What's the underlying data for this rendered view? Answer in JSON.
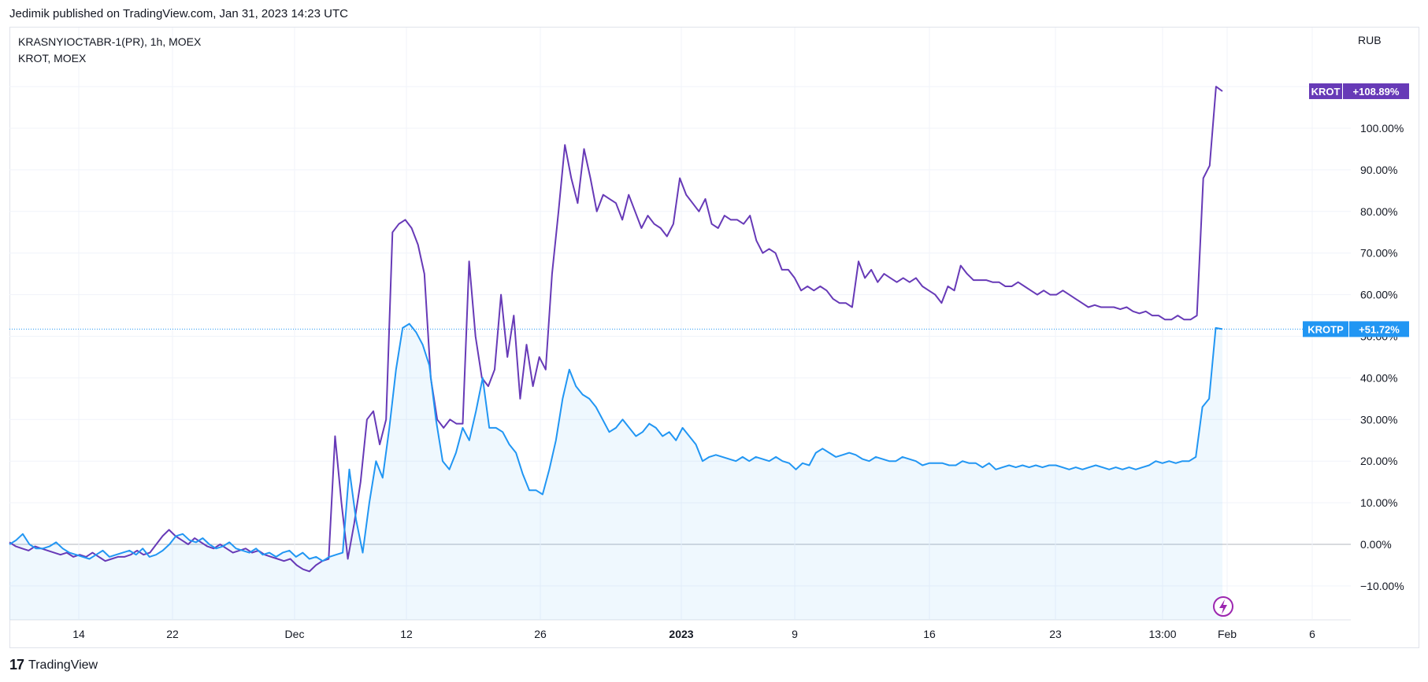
{
  "header": {
    "published": "Jedimik published on TradingView.com, Jan 31, 2023 14:23 UTC"
  },
  "legend": {
    "line1": "KRASNYIOCTABR-1(PR), 1h, MOEX",
    "line2": "KROT, MOEX"
  },
  "currency": "RUB",
  "footer": {
    "brand": "TradingView",
    "logo_text": "17"
  },
  "colors": {
    "krot": "#673ab7",
    "krotp": "#2196f3",
    "zero": "#b2b5be",
    "grid": "#f0f3fa"
  },
  "chart_data": {
    "type": "line",
    "title": "",
    "ylabel": "",
    "y_unit": "%",
    "ylim": [
      -16,
      120
    ],
    "y_ticks": [
      "100.00%",
      "90.00%",
      "80.00%",
      "70.00%",
      "60.00%",
      "50.00%",
      "40.00%",
      "30.00%",
      "20.00%",
      "10.00%",
      "0.00%",
      "−10.00%"
    ],
    "x_tick_labels": [
      "14",
      "22",
      "Dec",
      "12",
      "26",
      "2023",
      "9",
      "16",
      "23",
      "13:00",
      "Feb",
      "6"
    ],
    "series": [
      {
        "name": "KROT",
        "color": "#673ab7",
        "last_label": "+108.89%",
        "values": [
          0.5,
          -0.5,
          -1,
          -1.5,
          -0.5,
          -1,
          -1.5,
          -2,
          -2.5,
          -2,
          -3,
          -2.5,
          -3,
          -2,
          -3,
          -4,
          -3.5,
          -3,
          -3,
          -2.5,
          -1.5,
          -2.5,
          -2,
          0,
          2,
          3.5,
          2,
          1,
          0,
          1.5,
          0.5,
          -0.5,
          -1,
          0,
          -1,
          -2,
          -1.5,
          -1,
          -2,
          -1.5,
          -2.5,
          -3,
          -3.5,
          -4,
          -3.5,
          -5,
          -6,
          -6.5,
          -5,
          -4,
          -3.5,
          26,
          10,
          -3.5,
          5,
          15,
          30,
          32,
          24,
          30,
          75,
          77,
          78,
          76,
          72,
          65,
          40,
          30,
          28,
          30,
          29,
          29,
          68,
          50,
          40,
          38,
          42,
          60,
          45,
          55,
          35,
          48,
          38,
          45,
          42,
          65,
          80,
          96,
          88,
          82,
          95,
          88,
          80,
          84,
          83,
          82,
          78,
          84,
          80,
          76,
          79,
          77,
          76,
          74,
          77,
          88,
          84,
          82,
          80,
          83,
          77,
          76,
          79,
          78,
          78,
          77,
          79,
          73,
          70,
          71,
          70,
          66,
          66,
          64,
          61,
          62,
          61,
          62,
          61,
          59,
          58,
          58,
          57,
          68,
          64,
          66,
          63,
          65,
          64,
          63,
          64,
          63,
          64,
          62,
          61,
          60,
          58,
          62,
          61,
          67,
          65,
          63.5,
          63.5,
          63.5,
          63,
          63,
          62,
          62,
          63,
          62,
          61,
          60,
          61,
          60,
          60,
          61,
          60,
          59,
          58,
          57,
          57.5,
          57,
          57,
          57,
          56.5,
          57,
          56,
          55.5,
          56,
          55,
          55,
          54,
          54,
          55,
          54,
          54,
          55,
          88,
          91,
          110,
          108.89
        ]
      },
      {
        "name": "KROTP",
        "color": "#2196f3",
        "last_label": "+51.72%",
        "values": [
          0,
          1,
          2.5,
          0,
          -1,
          -1,
          -0.5,
          0.5,
          -1,
          -2,
          -2.5,
          -3,
          -3.5,
          -2.5,
          -1.5,
          -3,
          -2.5,
          -2,
          -1.5,
          -2.5,
          -1,
          -3,
          -2.5,
          -1.5,
          0,
          2,
          2.5,
          1,
          0.5,
          1.5,
          0,
          -1,
          -0.5,
          0.5,
          -1,
          -1.5,
          -2,
          -1,
          -2.5,
          -2,
          -3,
          -2,
          -1.5,
          -3,
          -2,
          -3.5,
          -3,
          -4,
          -3,
          -2.5,
          -2,
          18,
          6,
          -2,
          10,
          20,
          16,
          28,
          42,
          52,
          53,
          51,
          48,
          43,
          30,
          20,
          18,
          22,
          28,
          25,
          32,
          40,
          28,
          28,
          27,
          24,
          22,
          17,
          13,
          13,
          12,
          18,
          25,
          35,
          42,
          38,
          36,
          35,
          33,
          30,
          27,
          28,
          30,
          28,
          26,
          27,
          29,
          28,
          26,
          27,
          25,
          28,
          26,
          24,
          20,
          21,
          21.5,
          21,
          20.5,
          20,
          21,
          20,
          21,
          20.5,
          20,
          21,
          20,
          19.5,
          18,
          19.5,
          19,
          22,
          23,
          22,
          21,
          21.5,
          22,
          21.5,
          20.5,
          20,
          21,
          20.5,
          20,
          20,
          21,
          20.5,
          20,
          19,
          19.5,
          19.5,
          19.5,
          19,
          19,
          20,
          19.5,
          19.5,
          18.5,
          19.5,
          18,
          18.5,
          19,
          18.5,
          19,
          18.5,
          19,
          18.5,
          19,
          19,
          18.5,
          18,
          18.5,
          18,
          18.5,
          19,
          18.5,
          18,
          18.5,
          18,
          18.5,
          18,
          18.5,
          19,
          20,
          19.5,
          20,
          19.5,
          20,
          20,
          21,
          33,
          35,
          52,
          51.72
        ]
      }
    ]
  }
}
